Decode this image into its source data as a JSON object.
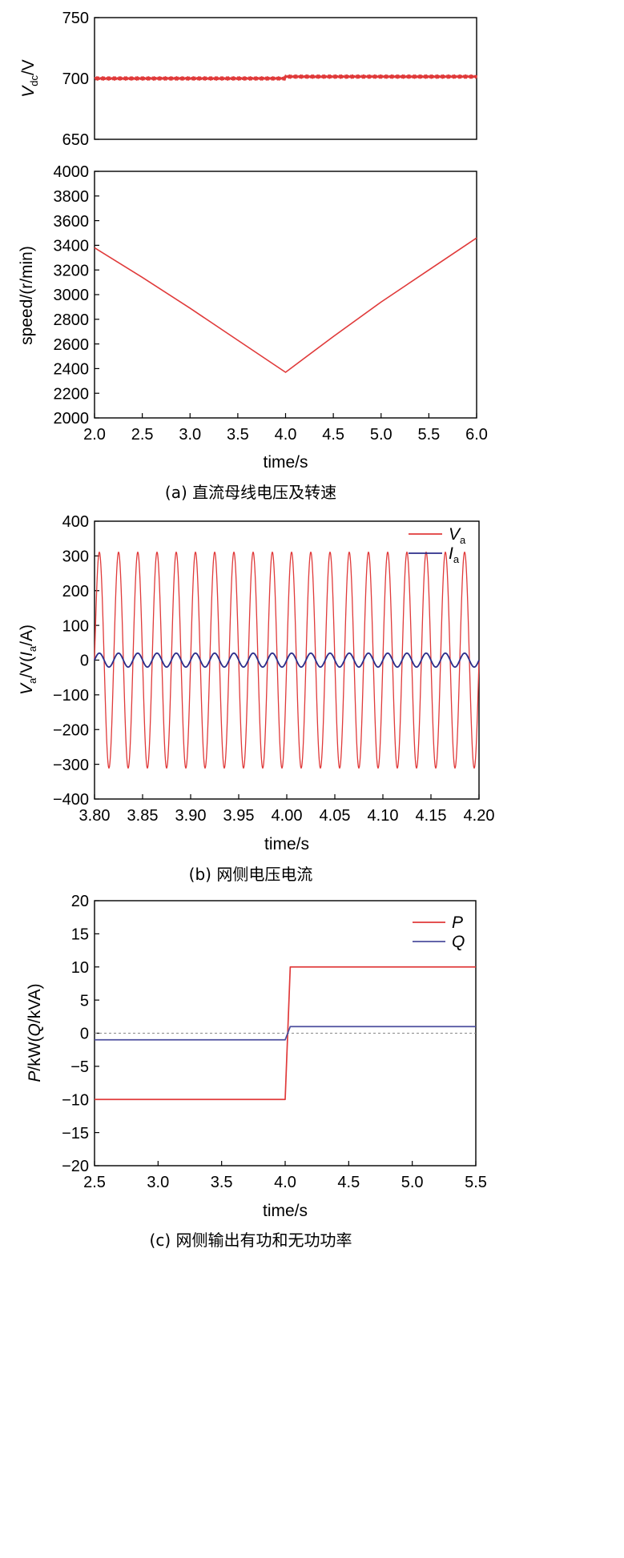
{
  "panels": [
    {
      "id": "a",
      "caption": "(a) 直流母线电压及转速",
      "xlabel": "time/s",
      "xlim": [
        2.0,
        6.0
      ],
      "xticks": [
        "2.0",
        "2.5",
        "3.0",
        "3.5",
        "4.0",
        "4.5",
        "5.0",
        "5.5",
        "6.0"
      ],
      "upper_ylabel": {
        "main": "V",
        "sub": "dc",
        "suffix": "/V"
      },
      "upper_ylim": [
        650,
        750
      ],
      "upper_yticks": [
        "650",
        "700",
        "750"
      ],
      "lower_ylabel": "speed/(r/min)",
      "lower_ylim": [
        2000,
        4000
      ],
      "lower_yticks": [
        "2000",
        "2200",
        "2400",
        "2600",
        "2800",
        "3000",
        "3200",
        "3400",
        "3600",
        "3800",
        "4000"
      ]
    },
    {
      "id": "b",
      "caption": "(b) 网侧电压电流",
      "xlabel": "time/s",
      "xlim": [
        3.8,
        4.2
      ],
      "xticks": [
        "3.80",
        "3.85",
        "3.90",
        "3.95",
        "4.00",
        "4.05",
        "4.10",
        "4.15",
        "4.20"
      ],
      "ylim": [
        -400,
        400
      ],
      "yticks": [
        "−400",
        "−300",
        "−200",
        "−100",
        "0",
        "100",
        "200",
        "300",
        "400"
      ],
      "legend": [
        {
          "main": "V",
          "sub": "a",
          "color": "#e03a3a"
        },
        {
          "main": "I",
          "sub": "a",
          "color": "#2b2d8a"
        }
      ]
    },
    {
      "id": "c",
      "caption": "(c) 网侧输出有功和无功功率",
      "xlabel": "time/s",
      "xlim": [
        2.5,
        5.5
      ],
      "xticks": [
        "2.5",
        "3.0",
        "3.5",
        "4.0",
        "4.5",
        "5.0",
        "5.5"
      ],
      "ylabel": "P/kW(Q/kVA)",
      "ylim": [
        -20,
        20
      ],
      "yticks": [
        "−20",
        "−15",
        "−10",
        "−5",
        "0",
        "5",
        "10",
        "15",
        "20"
      ],
      "legend": [
        {
          "main": "P",
          "color": "#e03a3a"
        },
        {
          "main": "Q",
          "color": "#4d4f9e"
        }
      ]
    }
  ],
  "chart_data": [
    {
      "type": "line",
      "title": "",
      "xlabel": "time/s",
      "ylabel": "Vdc/V",
      "xlim": [
        2.0,
        6.0
      ],
      "ylim": [
        650,
        750
      ],
      "series": [
        {
          "color": "#e03a3a",
          "x": [
            2.0,
            4.0,
            4.0,
            6.0
          ],
          "y": [
            700,
            700,
            701.5,
            701.5
          ]
        }
      ]
    },
    {
      "type": "line",
      "title": "",
      "xlabel": "time/s",
      "ylabel": "speed/(r/min)",
      "xlim": [
        2.0,
        6.0
      ],
      "ylim": [
        2000,
        4000
      ],
      "series": [
        {
          "color": "#e03a3a",
          "x": [
            2.0,
            2.5,
            3.0,
            3.5,
            4.0,
            4.5,
            5.0,
            5.5,
            6.0
          ],
          "y": [
            3380,
            3140,
            2890,
            2630,
            2370,
            2660,
            2940,
            3200,
            3460
          ]
        }
      ]
    },
    {
      "type": "line",
      "title": "",
      "xlabel": "time/s",
      "ylabel": "Va/V(Ia/A)",
      "xlim": [
        3.8,
        4.2
      ],
      "ylim": [
        -400,
        400
      ],
      "series": [
        {
          "name": "Va",
          "color": "#e03a3a",
          "kind": "sine",
          "amplitude": 311,
          "frequency_hz": 50,
          "phase_deg": 0
        },
        {
          "name": "Ia",
          "color": "#2b2d8a",
          "kind": "sine",
          "amplitude": 20,
          "frequency_hz": 50,
          "phase_deg": 0
        }
      ]
    },
    {
      "type": "line",
      "title": "",
      "xlabel": "time/s",
      "ylabel": "P/kW(Q/kVA)",
      "xlim": [
        2.5,
        5.5
      ],
      "ylim": [
        -20,
        20
      ],
      "series": [
        {
          "name": "P",
          "color": "#e03a3a",
          "x": [
            2.5,
            4.0,
            4.04,
            5.5
          ],
          "y": [
            -10,
            -10,
            10,
            10
          ]
        },
        {
          "name": "Q",
          "color": "#4d4f9e",
          "x": [
            2.5,
            4.0,
            4.04,
            5.5
          ],
          "y": [
            -1,
            -1,
            1,
            1
          ]
        }
      ]
    }
  ]
}
